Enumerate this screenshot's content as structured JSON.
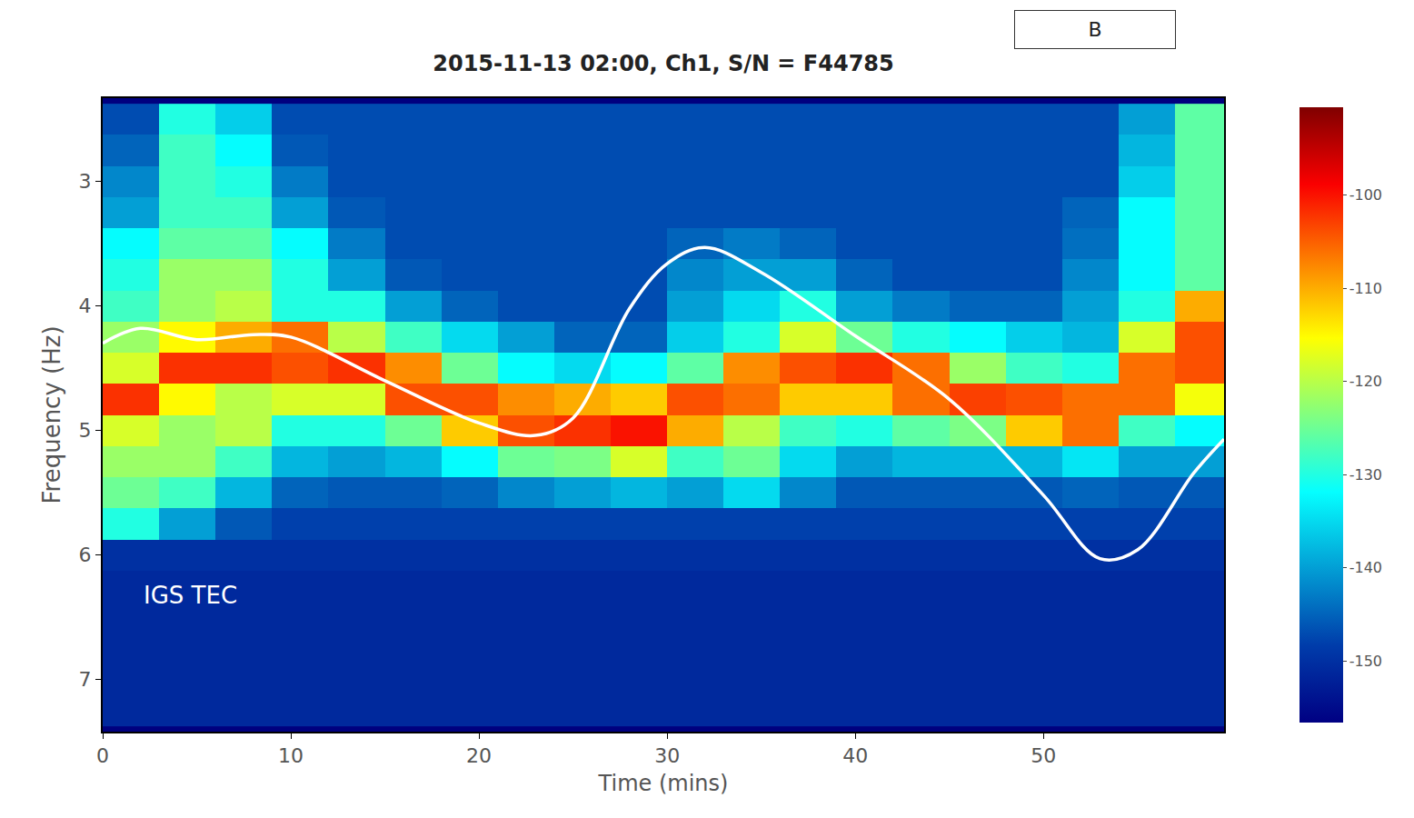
{
  "chart_data": {
    "type": "heatmap",
    "title": "2015-11-13 02:00, Ch1, S/N = F44785",
    "panel_label": "B",
    "xlabel": "Time (mins)",
    "ylabel": "Frequency (Hz)",
    "color": "Jet",
    "grid": false,
    "xlim": [
      0,
      59.6
    ],
    "xticks": [
      0,
      10,
      20,
      30,
      40,
      50
    ],
    "ylim": [
      7.42,
      2.33
    ],
    "yticks": [
      3,
      4,
      5,
      6,
      7
    ],
    "zlim": [
      -156.6,
      -90.6
    ],
    "zticks": [
      -100,
      -110,
      -120,
      -130,
      -140,
      -150
    ],
    "x": [
      1.5,
      4.5,
      7.5,
      10.5,
      13.5,
      16.5,
      19.5,
      22.5,
      25.5,
      28.5,
      31.5,
      34.5,
      37.5,
      40.5,
      43.5,
      46.5,
      49.5,
      52.5,
      55.5,
      58.5
    ],
    "y": [
      2.5,
      2.75,
      3.0,
      3.25,
      3.5,
      3.75,
      4.0,
      4.25,
      4.5,
      4.75,
      5.0,
      5.25,
      5.5,
      5.75,
      6.0,
      6.25,
      6.5,
      6.75,
      7.0,
      7.25
    ],
    "z": [
      [
        -147,
        -130,
        -136,
        -147,
        -147,
        -147,
        -147,
        -147,
        -147,
        -147,
        -147,
        -147,
        -147,
        -147,
        -147,
        -147,
        -147,
        -147,
        -140,
        -126
      ],
      [
        -145,
        -128,
        -132,
        -146,
        -147,
        -147,
        -147,
        -147,
        -147,
        -147,
        -147,
        -147,
        -147,
        -147,
        -147,
        -147,
        -147,
        -147,
        -138,
        -126
      ],
      [
        -142,
        -128,
        -130,
        -143,
        -147,
        -147,
        -147,
        -147,
        -147,
        -147,
        -147,
        -147,
        -147,
        -147,
        -147,
        -147,
        -147,
        -147,
        -136,
        -126
      ],
      [
        -140,
        -128,
        -128,
        -140,
        -146,
        -147,
        -147,
        -147,
        -147,
        -147,
        -147,
        -147,
        -147,
        -147,
        -147,
        -147,
        -147,
        -145,
        -132,
        -126
      ],
      [
        -132,
        -126,
        -126,
        -132,
        -143,
        -147,
        -147,
        -147,
        -147,
        -147,
        -145,
        -143,
        -145,
        -147,
        -147,
        -147,
        -147,
        -144,
        -132,
        -126
      ],
      [
        -130,
        -122,
        -122,
        -130,
        -140,
        -146,
        -147,
        -147,
        -147,
        -147,
        -142,
        -140,
        -140,
        -145,
        -147,
        -147,
        -147,
        -142,
        -132,
        -126
      ],
      [
        -128,
        -122,
        -120,
        -130,
        -130,
        -140,
        -145,
        -147,
        -147,
        -147,
        -140,
        -135,
        -130,
        -140,
        -143,
        -145,
        -145,
        -140,
        -130,
        -110
      ],
      [
        -122,
        -115,
        -110,
        -106,
        -120,
        -128,
        -135,
        -140,
        -145,
        -145,
        -136,
        -130,
        -118,
        -125,
        -130,
        -132,
        -136,
        -138,
        -118,
        -104
      ],
      [
        -118,
        -102,
        -102,
        -104,
        -102,
        -108,
        -125,
        -132,
        -135,
        -132,
        -126,
        -108,
        -104,
        -102,
        -106,
        -122,
        -128,
        -130,
        -106,
        -104
      ],
      [
        -102,
        -115,
        -120,
        -118,
        -118,
        -104,
        -104,
        -108,
        -110,
        -112,
        -104,
        -106,
        -112,
        -112,
        -106,
        -103,
        -104,
        -106,
        -106,
        -116
      ],
      [
        -118,
        -122,
        -120,
        -130,
        -130,
        -125,
        -112,
        -104,
        -102,
        -100,
        -110,
        -120,
        -128,
        -130,
        -126,
        -124,
        -112,
        -106,
        -128,
        -132
      ],
      [
        -122,
        -122,
        -128,
        -138,
        -140,
        -138,
        -132,
        -125,
        -124,
        -118,
        -128,
        -125,
        -135,
        -140,
        -138,
        -138,
        -138,
        -134,
        -140,
        -140
      ],
      [
        -125,
        -128,
        -138,
        -145,
        -146,
        -146,
        -145,
        -142,
        -140,
        -138,
        -140,
        -135,
        -142,
        -146,
        -146,
        -146,
        -146,
        -145,
        -146,
        -146
      ],
      [
        -130,
        -140,
        -146,
        -148,
        -148,
        -148,
        -148,
        -148,
        -148,
        -148,
        -148,
        -148,
        -148,
        -148,
        -148,
        -148,
        -148,
        -148,
        -148,
        -148
      ],
      [
        -150,
        -150,
        -150,
        -150,
        -150,
        -150,
        -150,
        -150,
        -150,
        -150,
        -150,
        -150,
        -150,
        -150,
        -150,
        -150,
        -150,
        -150,
        -150,
        -150
      ],
      [
        -151,
        -151,
        -151,
        -151,
        -151,
        -151,
        -151,
        -151,
        -151,
        -151,
        -151,
        -151,
        -151,
        -151,
        -151,
        -151,
        -151,
        -151,
        -151,
        -151
      ],
      [
        -151,
        -151,
        -151,
        -151,
        -151,
        -151,
        -151,
        -151,
        -151,
        -151,
        -151,
        -151,
        -151,
        -151,
        -151,
        -151,
        -151,
        -151,
        -151,
        -151
      ],
      [
        -151,
        -151,
        -151,
        -151,
        -151,
        -151,
        -151,
        -151,
        -151,
        -151,
        -151,
        -151,
        -151,
        -151,
        -151,
        -151,
        -151,
        -151,
        -151,
        -151
      ],
      [
        -151,
        -151,
        -151,
        -151,
        -151,
        -151,
        -151,
        -151,
        -151,
        -151,
        -151,
        -151,
        -151,
        -151,
        -151,
        -151,
        -151,
        -151,
        -151,
        -151
      ],
      [
        -151,
        -151,
        -151,
        -151,
        -151,
        -151,
        -151,
        -151,
        -151,
        -151,
        -151,
        -151,
        -151,
        -151,
        -151,
        -151,
        -151,
        -151,
        -151,
        -151
      ]
    ],
    "series": [
      {
        "name": "IGS TEC",
        "type": "line",
        "color": "#ffffff",
        "line_style": "solid",
        "x": [
          0,
          2,
          5,
          8,
          10,
          15,
          20,
          23,
          25,
          28,
          30,
          32,
          35,
          40,
          45,
          50,
          53,
          55,
          58,
          59.6
        ],
        "values": [
          4.3,
          4.18,
          4.27,
          4.23,
          4.25,
          4.6,
          4.94,
          5.04,
          4.9,
          4.02,
          3.66,
          3.53,
          3.73,
          4.24,
          4.75,
          5.52,
          6.03,
          5.96,
          5.34,
          5.07
        ]
      }
    ]
  }
}
